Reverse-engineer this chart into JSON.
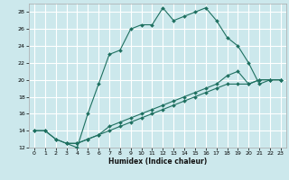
{
  "title": "",
  "xlabel": "Humidex (Indice chaleur)",
  "bg_color": "#cce8ec",
  "grid_color": "#ffffff",
  "line_color": "#1e7060",
  "xlim": [
    -0.5,
    23.5
  ],
  "ylim": [
    12,
    29
  ],
  "xticks": [
    0,
    1,
    2,
    3,
    4,
    5,
    6,
    7,
    8,
    9,
    10,
    11,
    12,
    13,
    14,
    15,
    16,
    17,
    18,
    19,
    20,
    21,
    22,
    23
  ],
  "yticks": [
    12,
    14,
    16,
    18,
    20,
    22,
    24,
    26,
    28
  ],
  "series": [
    {
      "x": [
        0,
        1,
        2,
        3,
        4,
        5,
        6,
        7,
        8,
        9,
        10,
        11,
        12,
        13,
        14,
        15,
        16,
        17,
        18,
        19,
        20,
        21,
        22,
        23
      ],
      "y": [
        14,
        14,
        13,
        12.5,
        12,
        16,
        19.5,
        23,
        23.5,
        26,
        26.5,
        26.5,
        28.5,
        27,
        27.5,
        28,
        28.5,
        27,
        25,
        24,
        22,
        19.5,
        20,
        20
      ]
    },
    {
      "x": [
        0,
        1,
        2,
        3,
        4,
        5,
        6,
        7,
        8,
        9,
        10,
        11,
        12,
        13,
        14,
        15,
        16,
        17,
        18,
        19,
        20,
        21,
        22,
        23
      ],
      "y": [
        14,
        14,
        13,
        12.5,
        12.5,
        13,
        13.5,
        14,
        14.5,
        15,
        15.5,
        16,
        16.5,
        17,
        17.5,
        18,
        18.5,
        19,
        19.5,
        19.5,
        19.5,
        20,
        20,
        20
      ]
    },
    {
      "x": [
        3,
        4,
        5,
        6,
        7,
        8,
        9,
        10,
        11,
        12,
        13,
        14,
        15,
        16,
        17,
        18,
        19,
        20,
        21,
        22,
        23
      ],
      "y": [
        12.5,
        12.5,
        13,
        13.5,
        14.5,
        15,
        15.5,
        16,
        16.5,
        17,
        17.5,
        18,
        18.5,
        19,
        19.5,
        20.5,
        21,
        19.5,
        20,
        20,
        20
      ]
    }
  ]
}
